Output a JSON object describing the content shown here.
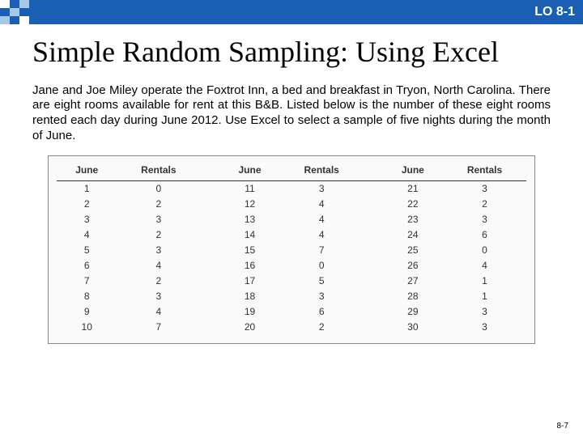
{
  "header": {
    "lo_label": "LO 8-1",
    "bar_color": "#1a5fb4"
  },
  "title": "Simple Random Sampling: Using Excel",
  "body": "Jane and Joe Miley operate the Foxtrot Inn, a bed and breakfast in Tryon, North Carolina. There are eight rooms available for rent at this B&B. Listed below is the number of these eight rooms rented each day during June 2012. Use Excel to select a sample of five nights during the month of June.",
  "table": {
    "type": "table",
    "background_color": "#fafafa",
    "border_color": "#888888",
    "header_border_color": "#333333",
    "fontsize": 12,
    "columns": [
      "June",
      "Rentals",
      "June",
      "Rentals",
      "June",
      "Rentals"
    ],
    "rows": [
      [
        "1",
        "0",
        "11",
        "3",
        "21",
        "3"
      ],
      [
        "2",
        "2",
        "12",
        "4",
        "22",
        "2"
      ],
      [
        "3",
        "3",
        "13",
        "4",
        "23",
        "3"
      ],
      [
        "4",
        "2",
        "14",
        "4",
        "24",
        "6"
      ],
      [
        "5",
        "3",
        "15",
        "7",
        "25",
        "0"
      ],
      [
        "6",
        "4",
        "16",
        "0",
        "26",
        "4"
      ],
      [
        "7",
        "2",
        "17",
        "5",
        "27",
        "1"
      ],
      [
        "8",
        "3",
        "18",
        "3",
        "28",
        "1"
      ],
      [
        "9",
        "4",
        "19",
        "6",
        "29",
        "3"
      ],
      [
        "10",
        "7",
        "20",
        "2",
        "30",
        "3"
      ]
    ]
  },
  "page_number": "8-7"
}
